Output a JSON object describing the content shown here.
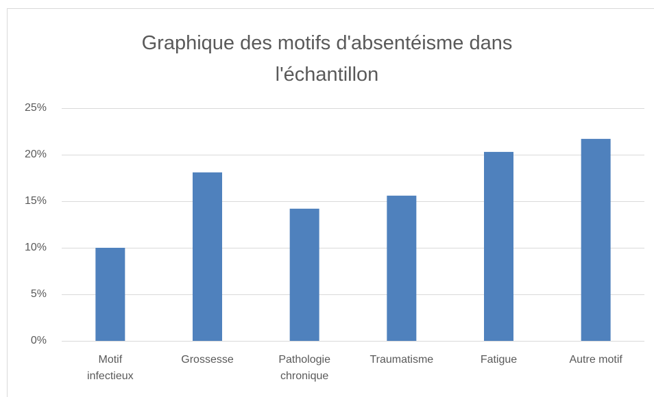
{
  "chart_data": {
    "type": "bar",
    "title": "Graphique des motifs d'absentéisme dans l'échantillon",
    "categories": [
      "Motif infectieux",
      "Grossesse",
      "Pathologie chronique",
      "Traumatisme",
      "Fatigue",
      "Autre motif"
    ],
    "values": [
      10.0,
      18.1,
      14.2,
      15.6,
      20.3,
      21.7
    ],
    "color": "#4f81bd",
    "ylim": [
      0,
      25
    ],
    "yticks": [
      {
        "value": 0,
        "label": "0%"
      },
      {
        "value": 5,
        "label": "5%"
      },
      {
        "value": 10,
        "label": "10%"
      },
      {
        "value": 15,
        "label": "15%"
      },
      {
        "value": 20,
        "label": "20%"
      },
      {
        "value": 25,
        "label": "25%"
      }
    ],
    "grid": true
  }
}
